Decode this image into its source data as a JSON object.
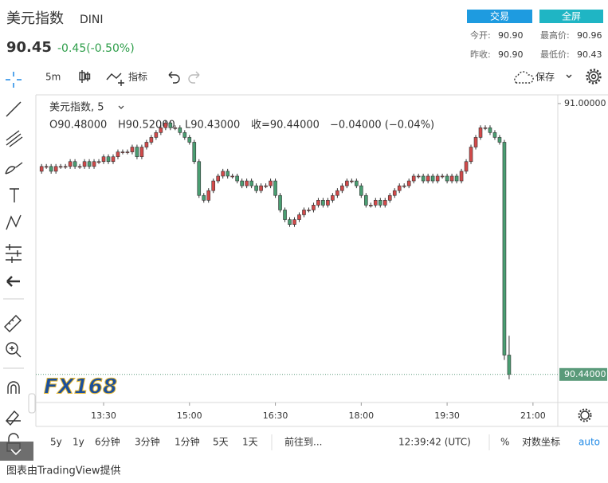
{
  "header": {
    "title": "美元指数",
    "symbol": "DINI",
    "price": "90.45",
    "change": "-0.45(-0.50%)",
    "buttons": [
      "交易",
      "全屏"
    ],
    "stats": [
      {
        "label": "今开:",
        "value": "90.90"
      },
      {
        "label": "最高价:",
        "value": "90.96"
      },
      {
        "label": "昨收:",
        "value": "90.90"
      },
      {
        "label": "最低价:",
        "value": "90.43"
      }
    ]
  },
  "toolbar": {
    "interval": "5m",
    "indicators": "指标",
    "save": "保存"
  },
  "chart_data": {
    "type": "candlestick",
    "title": "美元指数, 5",
    "legend": [
      "O90.48000",
      "H90.52000",
      "L90.43000",
      "收=90.44000",
      "−0.04000 (−0.04%)"
    ],
    "watermark": "FX168",
    "up_color": "#d24a4a",
    "down_color": "#4a9e72",
    "x": [
      "12:25",
      "12:30",
      "12:35",
      "12:40",
      "12:45",
      "12:50",
      "12:55",
      "13:00",
      "13:05",
      "13:10",
      "13:15",
      "13:20",
      "13:25",
      "13:30",
      "13:35",
      "13:40",
      "13:45",
      "13:50",
      "13:55",
      "14:00",
      "14:05",
      "14:10",
      "14:15",
      "14:20",
      "14:25",
      "14:30",
      "14:35",
      "14:40",
      "14:45",
      "14:50",
      "14:55",
      "15:00",
      "15:05",
      "15:10",
      "15:15",
      "15:20",
      "15:25",
      "15:30",
      "15:35",
      "15:40",
      "15:45",
      "15:50",
      "15:55",
      "16:00",
      "16:05",
      "16:10",
      "16:15",
      "16:20",
      "16:25",
      "16:30",
      "16:35",
      "16:40",
      "16:45",
      "16:50",
      "16:55",
      "17:00",
      "17:05",
      "17:10",
      "17:15",
      "17:20",
      "17:25",
      "17:30",
      "17:35",
      "17:40",
      "17:45",
      "17:50",
      "17:55",
      "18:00",
      "18:05",
      "18:10",
      "18:15",
      "18:20",
      "18:25",
      "18:30",
      "18:35",
      "18:40",
      "18:45",
      "18:50",
      "18:55",
      "19:00",
      "19:05",
      "19:10",
      "19:15",
      "19:20",
      "19:25",
      "19:30",
      "19:35",
      "19:40",
      "19:45",
      "19:50",
      "19:55",
      "20:00",
      "20:05",
      "20:10",
      "20:15",
      "20:20",
      "20:25",
      "20:30",
      "20:35"
    ],
    "open": [
      90.86,
      90.87,
      90.87,
      90.86,
      90.87,
      90.87,
      90.87,
      90.88,
      90.87,
      90.87,
      90.88,
      90.87,
      90.88,
      90.88,
      90.89,
      90.88,
      90.89,
      90.9,
      90.9,
      90.9,
      90.91,
      90.89,
      90.91,
      90.92,
      90.93,
      90.94,
      90.95,
      90.96,
      90.95,
      90.95,
      90.94,
      90.93,
      90.92,
      90.88,
      90.81,
      90.8,
      90.82,
      90.84,
      90.85,
      90.86,
      90.85,
      90.85,
      90.84,
      90.83,
      90.84,
      90.83,
      90.82,
      90.83,
      90.83,
      90.84,
      90.81,
      90.78,
      90.76,
      90.75,
      90.76,
      90.77,
      90.78,
      90.78,
      90.79,
      90.8,
      90.79,
      90.8,
      90.81,
      90.82,
      90.83,
      90.84,
      90.84,
      90.83,
      90.81,
      90.79,
      90.79,
      90.8,
      90.79,
      90.8,
      90.81,
      90.82,
      90.83,
      90.83,
      90.84,
      90.85,
      90.85,
      90.84,
      90.85,
      90.84,
      90.85,
      90.85,
      90.84,
      90.85,
      90.84,
      90.86,
      90.88,
      90.91,
      90.93,
      90.95,
      90.95,
      90.94,
      90.93,
      90.92,
      90.48
    ],
    "high": [
      90.875,
      90.875,
      90.875,
      90.875,
      90.875,
      90.875,
      90.885,
      90.885,
      90.875,
      90.885,
      90.885,
      90.885,
      90.885,
      90.895,
      90.895,
      90.895,
      90.905,
      90.905,
      90.905,
      90.915,
      90.915,
      90.915,
      90.925,
      90.935,
      90.945,
      90.955,
      90.965,
      90.965,
      90.955,
      90.955,
      90.945,
      90.935,
      90.925,
      90.885,
      90.815,
      90.825,
      90.845,
      90.855,
      90.865,
      90.865,
      90.855,
      90.855,
      90.845,
      90.845,
      90.845,
      90.835,
      90.835,
      90.835,
      90.845,
      90.845,
      90.815,
      90.785,
      90.765,
      90.765,
      90.775,
      90.785,
      90.785,
      90.795,
      90.805,
      90.805,
      90.805,
      90.815,
      90.825,
      90.835,
      90.845,
      90.845,
      90.845,
      90.835,
      90.815,
      90.795,
      90.805,
      90.805,
      90.805,
      90.815,
      90.825,
      90.835,
      90.835,
      90.845,
      90.855,
      90.855,
      90.855,
      90.855,
      90.855,
      90.855,
      90.855,
      90.855,
      90.855,
      90.855,
      90.865,
      90.885,
      90.915,
      90.935,
      90.955,
      90.955,
      90.955,
      90.945,
      90.935,
      90.925,
      90.52
    ],
    "low": [
      90.855,
      90.865,
      90.855,
      90.855,
      90.865,
      90.865,
      90.865,
      90.865,
      90.865,
      90.865,
      90.865,
      90.865,
      90.875,
      90.875,
      90.875,
      90.875,
      90.885,
      90.895,
      90.895,
      90.895,
      90.885,
      90.885,
      90.905,
      90.915,
      90.925,
      90.935,
      90.945,
      90.945,
      90.945,
      90.935,
      90.925,
      90.915,
      90.875,
      90.805,
      90.795,
      90.795,
      90.815,
      90.835,
      90.845,
      90.845,
      90.845,
      90.835,
      90.825,
      90.825,
      90.825,
      90.815,
      90.815,
      90.825,
      90.825,
      90.805,
      90.775,
      90.755,
      90.745,
      90.745,
      90.755,
      90.765,
      90.775,
      90.775,
      90.785,
      90.785,
      90.785,
      90.795,
      90.805,
      90.815,
      90.825,
      90.835,
      90.825,
      90.805,
      90.785,
      90.785,
      90.785,
      90.785,
      90.785,
      90.795,
      90.805,
      90.815,
      90.825,
      90.825,
      90.835,
      90.845,
      90.835,
      90.835,
      90.835,
      90.835,
      90.845,
      90.835,
      90.835,
      90.835,
      90.835,
      90.855,
      90.875,
      90.905,
      90.925,
      90.945,
      90.935,
      90.925,
      90.915,
      90.47,
      90.43
    ],
    "close": [
      90.87,
      90.87,
      90.86,
      90.87,
      90.87,
      90.87,
      90.88,
      90.87,
      90.87,
      90.88,
      90.87,
      90.88,
      90.88,
      90.89,
      90.88,
      90.89,
      90.9,
      90.9,
      90.9,
      90.91,
      90.89,
      90.91,
      90.92,
      90.93,
      90.94,
      90.95,
      90.96,
      90.95,
      90.95,
      90.94,
      90.93,
      90.92,
      90.88,
      90.81,
      90.8,
      90.82,
      90.84,
      90.85,
      90.86,
      90.85,
      90.85,
      90.84,
      90.83,
      90.84,
      90.83,
      90.82,
      90.83,
      90.83,
      90.84,
      90.81,
      90.78,
      90.76,
      90.75,
      90.76,
      90.77,
      90.78,
      90.78,
      90.79,
      90.8,
      90.79,
      90.8,
      90.81,
      90.82,
      90.83,
      90.84,
      90.84,
      90.83,
      90.81,
      90.79,
      90.79,
      90.8,
      90.79,
      90.8,
      90.81,
      90.82,
      90.83,
      90.83,
      90.84,
      90.85,
      90.85,
      90.84,
      90.85,
      90.84,
      90.85,
      90.85,
      90.84,
      90.85,
      90.84,
      90.86,
      90.88,
      90.91,
      90.93,
      90.95,
      90.95,
      90.94,
      90.93,
      90.92,
      90.48,
      90.44
    ],
    "xlim": [
      "12:19",
      "21:26"
    ],
    "xticks": [
      "13:30",
      "15:00",
      "16:30",
      "18:00",
      "19:30",
      "21:00"
    ],
    "ylim": [
      90.382,
      91.018
    ],
    "yticks": [
      {
        "value": 91,
        "label": "91.00000"
      }
    ],
    "last_price": {
      "value": 90.44,
      "label": "90.44000",
      "color": "#5a9a7a"
    }
  },
  "bottom_bar": {
    "ranges": [
      "5y",
      "1y",
      "6分钟",
      "3分钟",
      "1分钟",
      "5天",
      "1天"
    ],
    "goto": "前往到...",
    "time": "12:39:42 (UTC)",
    "percent": "%",
    "log": "对数坐标",
    "auto": "auto"
  },
  "footer": "图表由TradingView提供"
}
